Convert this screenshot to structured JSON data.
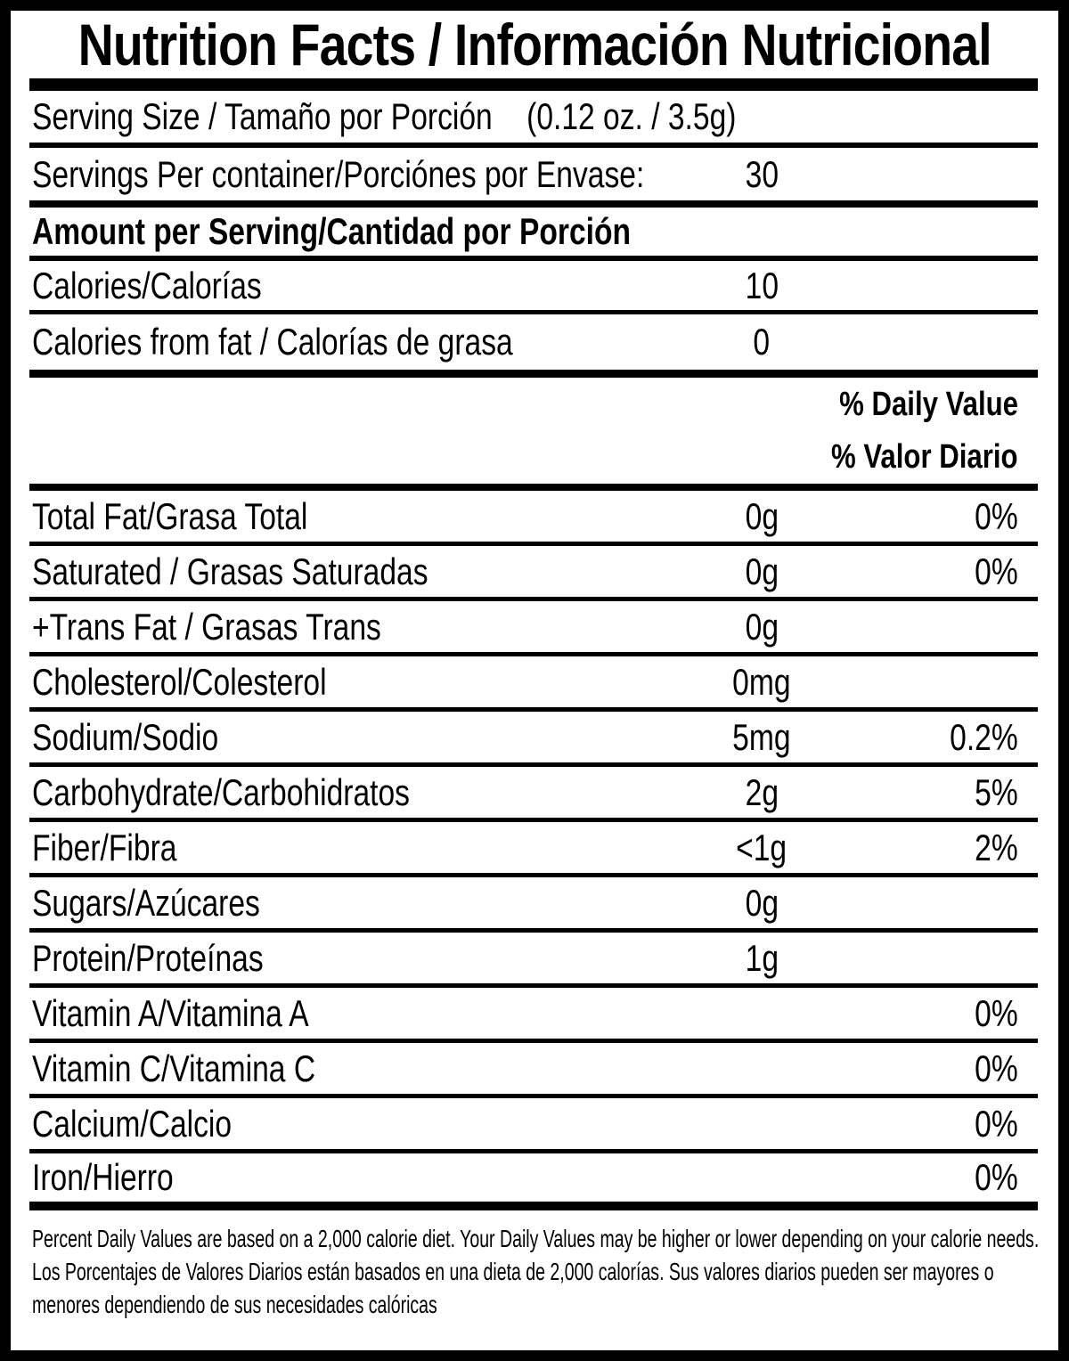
{
  "colors": {
    "text": "#000000",
    "background": "#ffffff",
    "rule": "#000000"
  },
  "label": {
    "title": "Nutrition Facts / Información Nutricional",
    "serving_size": {
      "label": "Serving Size / Tamaño por Porción",
      "value": "(0.12 oz. / 3.5g)"
    },
    "servings_per_container": {
      "label": "Servings Per container/Porciónes por Envase:",
      "value": "30"
    },
    "amount_per_serving_header": "Amount per Serving/Cantidad por Porción",
    "calories": {
      "label": "Calories/Calorías",
      "value": "10"
    },
    "calories_from_fat": {
      "label": "Calories from fat / Calorías de grasa",
      "value": "0"
    },
    "daily_value_header_en": "% Daily Value",
    "daily_value_header_es": "% Valor Diario",
    "nutrients": [
      {
        "label": "Total Fat/Grasa Total",
        "value": "0g",
        "pct": "0%"
      },
      {
        "label": "Saturated / Grasas Saturadas",
        "value": "0g",
        "pct": "0%"
      },
      {
        "label": "+Trans Fat / Grasas Trans",
        "value": "0g",
        "pct": ""
      },
      {
        "label": "Cholesterol/Colesterol",
        "value": "0mg",
        "pct": ""
      },
      {
        "label": "Sodium/Sodio",
        "value": "5mg",
        "pct": "0.2%"
      },
      {
        "label": "Carbohydrate/Carbohidratos",
        "value": "2g",
        "pct": "5%"
      },
      {
        "label": "Fiber/Fibra",
        "value": "<1g",
        "pct": "2%"
      },
      {
        "label": "Sugars/Azúcares",
        "value": "0g",
        "pct": ""
      },
      {
        "label": "Protein/Proteínas",
        "value": "1g",
        "pct": ""
      },
      {
        "label": "Vitamin A/Vitamina A",
        "value": "",
        "pct": "0%"
      },
      {
        "label": "Vitamin C/Vitamina C",
        "value": "",
        "pct": "0%"
      },
      {
        "label": "Calcium/Calcio",
        "value": "",
        "pct": "0%"
      },
      {
        "label": "Iron/Hierro",
        "value": "",
        "pct": "0%"
      }
    ],
    "footnote_en": "Percent Daily Values are based on a 2,000 calorie diet. Your Daily Values may be higher or lower depending on your calorie needs.",
    "footnote_es": "Los Porcentajes de Valores Diarios están basados en una dieta de 2,000 calorías. Sus valores diarios pueden ser mayores o menores dependiendo de sus necesidades calóricas"
  }
}
